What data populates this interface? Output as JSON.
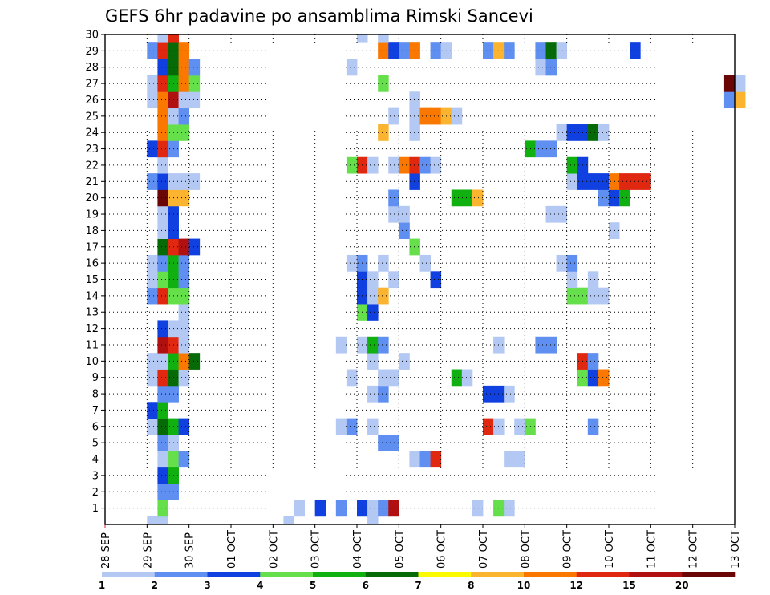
{
  "chart_data": {
    "type": "heatmap",
    "title": "GEFS 6hr padavine po ansamblima Rimski Sancevi",
    "x_ticks": [
      "28 SEP",
      "29 SEP",
      "30 SEP",
      "01 OCT",
      "02 OCT",
      "03 OCT",
      "04 OCT",
      "05 OCT",
      "06 OCT",
      "07 OCT",
      "08 OCT",
      "09 OCT",
      "10 OCT",
      "11 OCT",
      "12 OCT",
      "13 OCT"
    ],
    "y_ticks": [
      "1",
      "2",
      "3",
      "4",
      "5",
      "6",
      "7",
      "8",
      "9",
      "10",
      "11",
      "12",
      "13",
      "14",
      "15",
      "16",
      "17",
      "18",
      "19",
      "20",
      "21",
      "22",
      "23",
      "24",
      "25",
      "26",
      "27",
      "28",
      "29",
      "30"
    ],
    "x_range": [
      "28 SEP 00Z",
      "13 OCT 00Z"
    ],
    "x_step": "6hr",
    "y_range": [
      0,
      30
    ],
    "grid": true,
    "legend": {
      "placement": "bottom",
      "bounds": [
        1,
        2,
        3,
        4,
        5,
        6,
        7,
        8,
        10,
        12,
        15,
        20
      ],
      "colors": [
        "#b4c8f4",
        "#5f8ff0",
        "#1040e0",
        "#66e04a",
        "#10b010",
        "#066a06",
        "#fafa00",
        "#fab430",
        "#fa7800",
        "#e02810",
        "#b01010",
        "#6a0606"
      ]
    },
    "cells_note": "each cell: [member, time_step_from_28SEP00Z, color_class_index]",
    "cells": [
      [
        0,
        4,
        0
      ],
      [
        0,
        5,
        0
      ],
      [
        0,
        17,
        0
      ],
      [
        0,
        25,
        0
      ],
      [
        1,
        5,
        3
      ],
      [
        1,
        18,
        0
      ],
      [
        1,
        20,
        2
      ],
      [
        1,
        22,
        1
      ],
      [
        1,
        24,
        2
      ],
      [
        1,
        25,
        0
      ],
      [
        1,
        26,
        1
      ],
      [
        1,
        27,
        10
      ],
      [
        1,
        35,
        0
      ],
      [
        1,
        37,
        3
      ],
      [
        1,
        38,
        0
      ],
      [
        2,
        5,
        1
      ],
      [
        2,
        6,
        1
      ],
      [
        3,
        5,
        2
      ],
      [
        3,
        6,
        4
      ],
      [
        4,
        5,
        0
      ],
      [
        4,
        6,
        3
      ],
      [
        4,
        7,
        1
      ],
      [
        4,
        29,
        0
      ],
      [
        4,
        30,
        1
      ],
      [
        4,
        31,
        9
      ],
      [
        4,
        38,
        0
      ],
      [
        4,
        39,
        0
      ],
      [
        5,
        5,
        1
      ],
      [
        5,
        6,
        0
      ],
      [
        5,
        26,
        1
      ],
      [
        5,
        27,
        1
      ],
      [
        6,
        4,
        0
      ],
      [
        6,
        5,
        5
      ],
      [
        6,
        6,
        4
      ],
      [
        6,
        7,
        2
      ],
      [
        6,
        22,
        0
      ],
      [
        6,
        23,
        1
      ],
      [
        6,
        25,
        0
      ],
      [
        6,
        36,
        9
      ],
      [
        6,
        37,
        0
      ],
      [
        6,
        39,
        0
      ],
      [
        6,
        40,
        3
      ],
      [
        6,
        46,
        1
      ],
      [
        7,
        4,
        2
      ],
      [
        7,
        5,
        4
      ],
      [
        8,
        5,
        1
      ],
      [
        8,
        6,
        1
      ],
      [
        8,
        25,
        0
      ],
      [
        8,
        26,
        1
      ],
      [
        8,
        36,
        2
      ],
      [
        8,
        37,
        2
      ],
      [
        8,
        38,
        0
      ],
      [
        9,
        4,
        0
      ],
      [
        9,
        5,
        9
      ],
      [
        9,
        6,
        5
      ],
      [
        9,
        7,
        0
      ],
      [
        9,
        23,
        0
      ],
      [
        9,
        26,
        0
      ],
      [
        9,
        27,
        0
      ],
      [
        9,
        33,
        4
      ],
      [
        9,
        34,
        0
      ],
      [
        9,
        45,
        3
      ],
      [
        9,
        46,
        2
      ],
      [
        9,
        47,
        8
      ],
      [
        10,
        4,
        0
      ],
      [
        10,
        5,
        0
      ],
      [
        10,
        6,
        4
      ],
      [
        10,
        7,
        8
      ],
      [
        10,
        8,
        5
      ],
      [
        10,
        25,
        0
      ],
      [
        10,
        28,
        0
      ],
      [
        10,
        45,
        9
      ],
      [
        10,
        46,
        1
      ],
      [
        11,
        5,
        10
      ],
      [
        11,
        6,
        9
      ],
      [
        11,
        7,
        0
      ],
      [
        11,
        22,
        0
      ],
      [
        11,
        24,
        0
      ],
      [
        11,
        25,
        4
      ],
      [
        11,
        26,
        1
      ],
      [
        11,
        37,
        0
      ],
      [
        11,
        41,
        1
      ],
      [
        11,
        42,
        1
      ],
      [
        12,
        5,
        2
      ],
      [
        12,
        6,
        0
      ],
      [
        12,
        7,
        0
      ],
      [
        13,
        7,
        0
      ],
      [
        13,
        24,
        3
      ],
      [
        13,
        25,
        2
      ],
      [
        14,
        4,
        1
      ],
      [
        14,
        5,
        9
      ],
      [
        14,
        6,
        3
      ],
      [
        14,
        7,
        3
      ],
      [
        14,
        24,
        2
      ],
      [
        14,
        25,
        0
      ],
      [
        14,
        26,
        7
      ],
      [
        14,
        44,
        3
      ],
      [
        14,
        45,
        3
      ],
      [
        14,
        46,
        0
      ],
      [
        14,
        47,
        0
      ],
      [
        15,
        4,
        0
      ],
      [
        15,
        5,
        3
      ],
      [
        15,
        6,
        4
      ],
      [
        15,
        7,
        1
      ],
      [
        15,
        24,
        2
      ],
      [
        15,
        25,
        0
      ],
      [
        15,
        27,
        0
      ],
      [
        15,
        31,
        2
      ],
      [
        15,
        44,
        0
      ],
      [
        15,
        46,
        0
      ],
      [
        16,
        4,
        0
      ],
      [
        16,
        5,
        1
      ],
      [
        16,
        6,
        4
      ],
      [
        16,
        7,
        1
      ],
      [
        16,
        23,
        0
      ],
      [
        16,
        24,
        1
      ],
      [
        16,
        26,
        0
      ],
      [
        16,
        30,
        0
      ],
      [
        16,
        43,
        0
      ],
      [
        16,
        44,
        1
      ],
      [
        17,
        5,
        5
      ],
      [
        17,
        6,
        9
      ],
      [
        17,
        7,
        10
      ],
      [
        17,
        8,
        2
      ],
      [
        17,
        29,
        3
      ],
      [
        18,
        5,
        0
      ],
      [
        18,
        6,
        2
      ],
      [
        18,
        28,
        1
      ],
      [
        18,
        48,
        0
      ],
      [
        19,
        5,
        0
      ],
      [
        19,
        6,
        2
      ],
      [
        19,
        27,
        0
      ],
      [
        19,
        28,
        0
      ],
      [
        19,
        42,
        0
      ],
      [
        19,
        43,
        0
      ],
      [
        20,
        5,
        11
      ],
      [
        20,
        6,
        7
      ],
      [
        20,
        7,
        7
      ],
      [
        20,
        27,
        1
      ],
      [
        20,
        33,
        4
      ],
      [
        20,
        34,
        4
      ],
      [
        20,
        35,
        7
      ],
      [
        20,
        47,
        1
      ],
      [
        20,
        48,
        2
      ],
      [
        20,
        49,
        4
      ],
      [
        21,
        4,
        1
      ],
      [
        21,
        5,
        2
      ],
      [
        21,
        6,
        0
      ],
      [
        21,
        7,
        0
      ],
      [
        21,
        8,
        0
      ],
      [
        21,
        29,
        2
      ],
      [
        21,
        44,
        0
      ],
      [
        21,
        45,
        2
      ],
      [
        21,
        46,
        2
      ],
      [
        21,
        47,
        2
      ],
      [
        21,
        48,
        8
      ],
      [
        21,
        49,
        9
      ],
      [
        21,
        50,
        9
      ],
      [
        21,
        51,
        9
      ],
      [
        22,
        5,
        0
      ],
      [
        22,
        23,
        3
      ],
      [
        22,
        24,
        9
      ],
      [
        22,
        25,
        0
      ],
      [
        22,
        27,
        0
      ],
      [
        22,
        28,
        8
      ],
      [
        22,
        29,
        9
      ],
      [
        22,
        30,
        1
      ],
      [
        22,
        31,
        0
      ],
      [
        22,
        44,
        4
      ],
      [
        22,
        45,
        2
      ],
      [
        23,
        4,
        2
      ],
      [
        23,
        5,
        9
      ],
      [
        23,
        6,
        1
      ],
      [
        23,
        40,
        4
      ],
      [
        23,
        41,
        1
      ],
      [
        23,
        42,
        1
      ],
      [
        24,
        5,
        8
      ],
      [
        24,
        6,
        3
      ],
      [
        24,
        7,
        3
      ],
      [
        24,
        26,
        7
      ],
      [
        24,
        29,
        0
      ],
      [
        24,
        43,
        0
      ],
      [
        24,
        44,
        2
      ],
      [
        24,
        45,
        2
      ],
      [
        24,
        46,
        5
      ],
      [
        24,
        47,
        0
      ],
      [
        25,
        5,
        8
      ],
      [
        25,
        6,
        0
      ],
      [
        25,
        7,
        1
      ],
      [
        25,
        27,
        0
      ],
      [
        25,
        29,
        0
      ],
      [
        25,
        30,
        8
      ],
      [
        25,
        31,
        8
      ],
      [
        25,
        32,
        7
      ],
      [
        25,
        33,
        0
      ],
      [
        26,
        4,
        0
      ],
      [
        26,
        5,
        8
      ],
      [
        26,
        6,
        10
      ],
      [
        26,
        7,
        0
      ],
      [
        26,
        8,
        0
      ],
      [
        26,
        29,
        0
      ],
      [
        26,
        59,
        1
      ],
      [
        26,
        60,
        7
      ],
      [
        27,
        4,
        0
      ],
      [
        27,
        5,
        9
      ],
      [
        27,
        6,
        4
      ],
      [
        27,
        7,
        8
      ],
      [
        27,
        8,
        3
      ],
      [
        27,
        26,
        3
      ],
      [
        27,
        59,
        11
      ],
      [
        27,
        60,
        0
      ],
      [
        28,
        5,
        2
      ],
      [
        28,
        6,
        5
      ],
      [
        28,
        7,
        8
      ],
      [
        28,
        8,
        1
      ],
      [
        28,
        23,
        0
      ],
      [
        28,
        41,
        0
      ],
      [
        28,
        42,
        1
      ],
      [
        29,
        4,
        1
      ],
      [
        29,
        5,
        9
      ],
      [
        29,
        6,
        5
      ],
      [
        29,
        7,
        8
      ],
      [
        29,
        26,
        8
      ],
      [
        29,
        27,
        2
      ],
      [
        29,
        28,
        1
      ],
      [
        29,
        29,
        8
      ],
      [
        29,
        31,
        1
      ],
      [
        29,
        32,
        0
      ],
      [
        29,
        36,
        1
      ],
      [
        29,
        37,
        7
      ],
      [
        29,
        38,
        1
      ],
      [
        29,
        41,
        1
      ],
      [
        29,
        42,
        5
      ],
      [
        29,
        43,
        0
      ],
      [
        29,
        50,
        2
      ],
      [
        30,
        5,
        0
      ],
      [
        30,
        6,
        9
      ],
      [
        30,
        24,
        0
      ],
      [
        30,
        26,
        0
      ]
    ]
  }
}
